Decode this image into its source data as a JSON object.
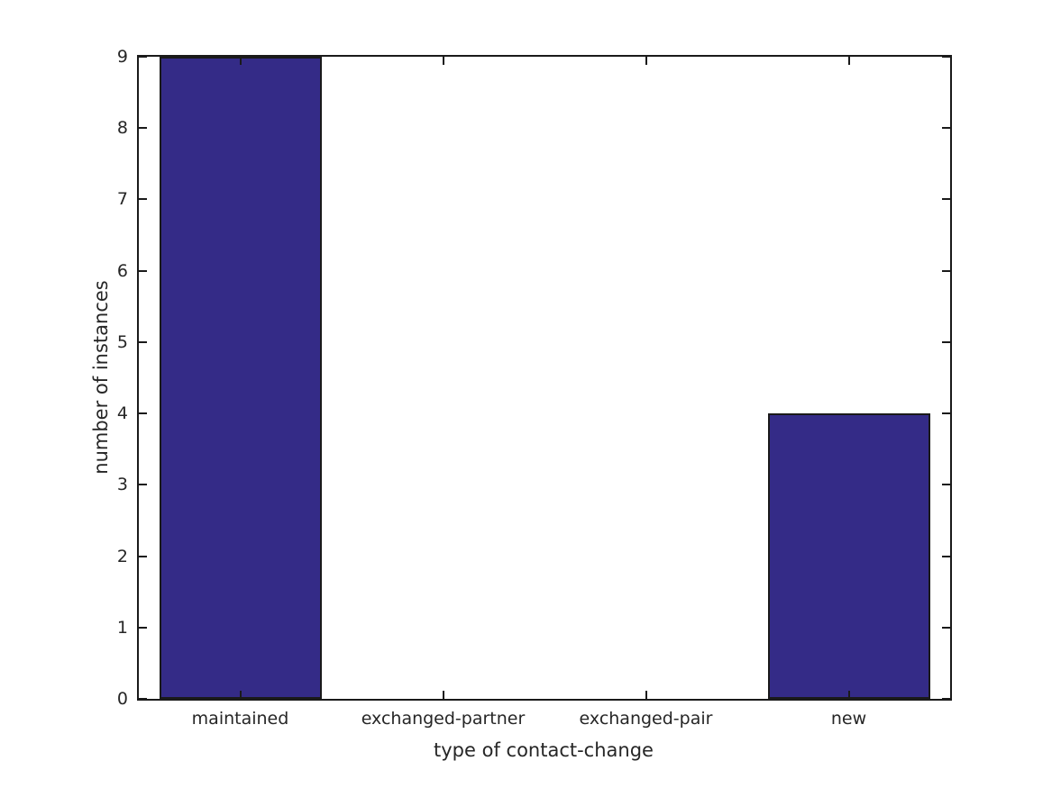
{
  "chart_data": {
    "type": "bar",
    "categories": [
      "maintained",
      "exchanged-partner",
      "exchanged-pair",
      "new"
    ],
    "values": [
      9,
      0,
      0,
      4
    ],
    "title": "",
    "xlabel": "type of contact-change",
    "ylabel": "number of instances",
    "ylim": [
      0,
      9
    ],
    "yticks": [
      0,
      1,
      2,
      3,
      4,
      5,
      6,
      7,
      8,
      9
    ],
    "bar_width_fraction": 0.8,
    "grid": false,
    "legend": null,
    "colors": {
      "bar_fill": "#342b87",
      "bar_edge": "#1a1a1a",
      "axis": "#1a1a1a",
      "text": "#262626",
      "background": "#ffffff"
    }
  }
}
